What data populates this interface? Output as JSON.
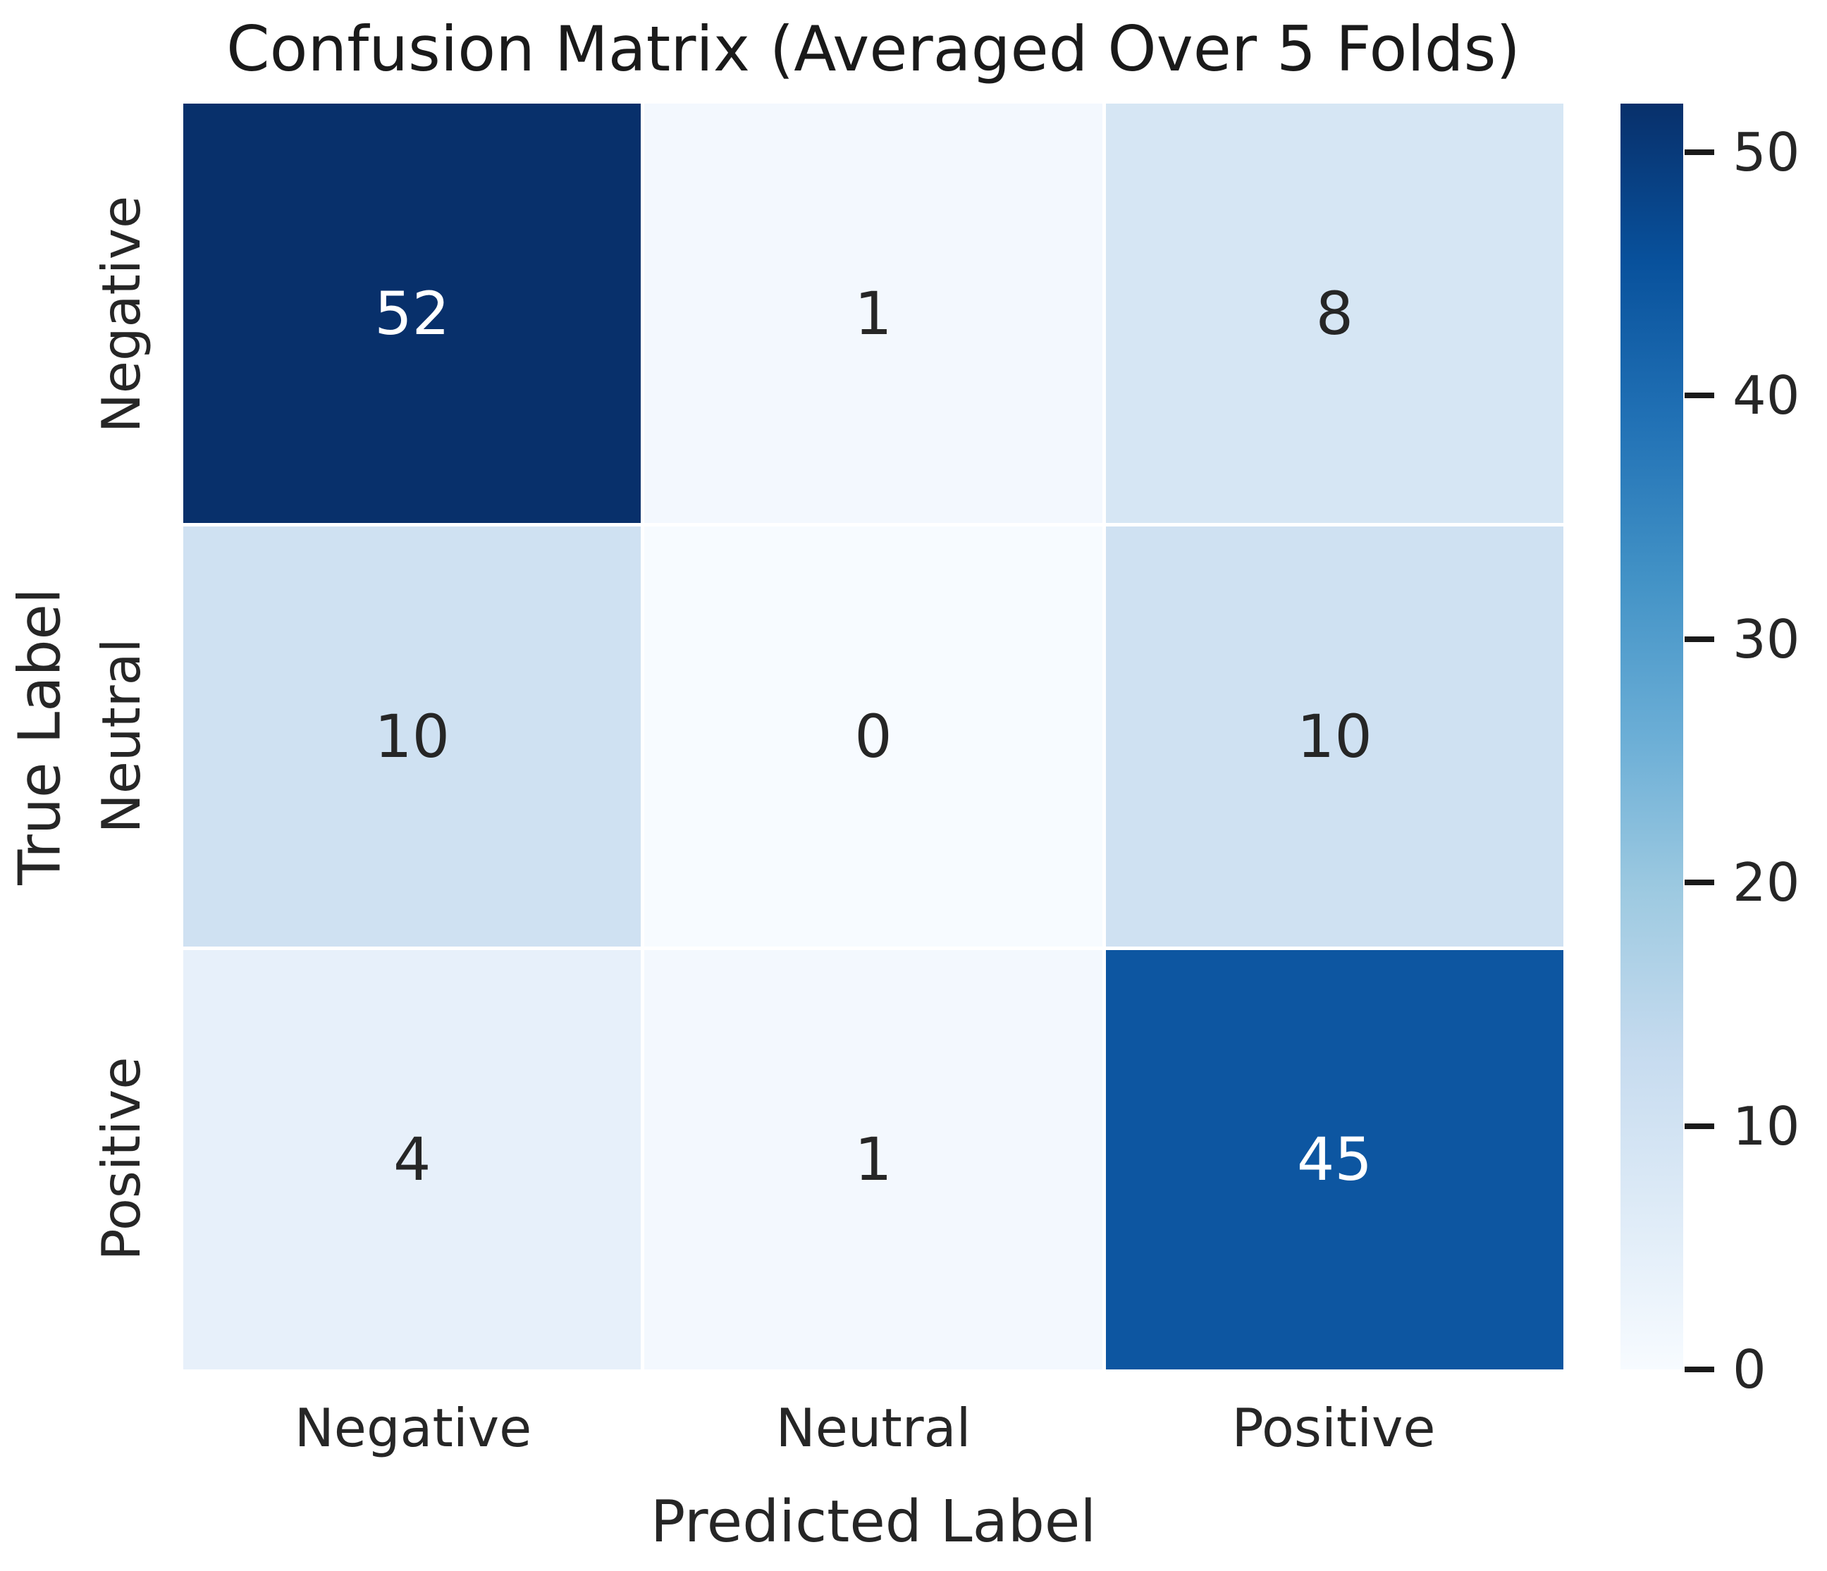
{
  "title": "Confusion Matrix (Averaged Over 5 Folds)",
  "chart_data": {
    "type": "heatmap",
    "title": "Confusion Matrix (Averaged Over 5 Folds)",
    "xlabel": "Predicted Label",
    "ylabel": "True Label",
    "x_categories": [
      "Negative",
      "Neutral",
      "Positive"
    ],
    "y_categories": [
      "Negative",
      "Neutral",
      "Positive"
    ],
    "values": [
      [
        52,
        1,
        8
      ],
      [
        10,
        0,
        10
      ],
      [
        4,
        1,
        45
      ]
    ],
    "annotated": true,
    "colormap": "Blues",
    "vmin": 0,
    "vmax": 52,
    "colorbar_ticks": [
      0,
      10,
      20,
      30,
      40,
      50
    ],
    "colorbar_position": "right",
    "grid": false
  },
  "colors": {
    "background": "#ffffff",
    "text": "#262626",
    "title_text": "#1a1a1a",
    "cell_colors": [
      [
        "#08306b",
        "#f3f8fe",
        "#d6e6f4"
      ],
      [
        "#cfe1f2",
        "#f7fbff",
        "#cfe1f2"
      ],
      [
        "#e7f0fa",
        "#f3f8fe",
        "#0d56a1"
      ]
    ],
    "cell_text_colors": [
      [
        "#ffffff",
        "#262626",
        "#262626"
      ],
      [
        "#262626",
        "#262626",
        "#262626"
      ],
      [
        "#262626",
        "#262626",
        "#ffffff"
      ]
    ],
    "colorbar_gradient_bottom_to_top": [
      "#f7fbff",
      "#deebf7",
      "#c6dbef",
      "#9ecae1",
      "#6baed6",
      "#4292c6",
      "#2171b5",
      "#08519c",
      "#08306b"
    ]
  }
}
